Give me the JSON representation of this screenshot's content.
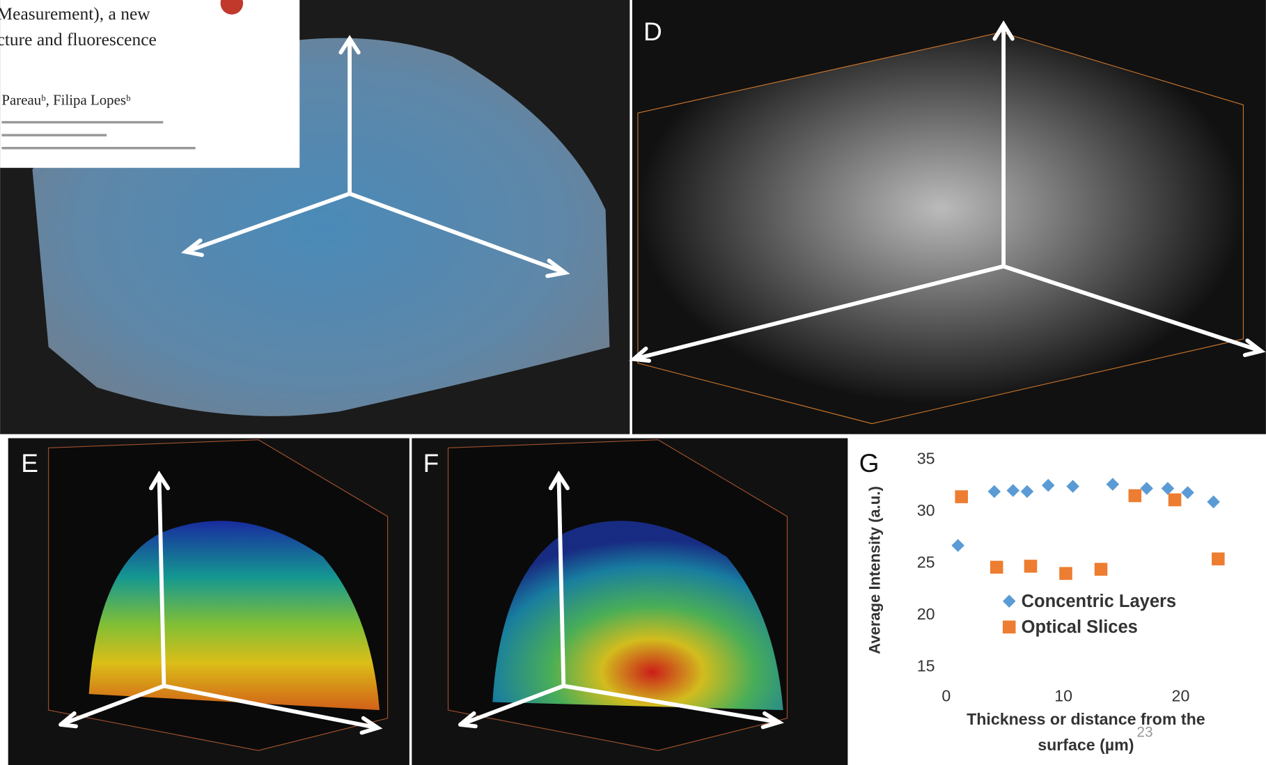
{
  "paper_snippet": {
    "lines": [
      "Measurement), a new",
      "cture and fluorescence"
    ],
    "authors": "Pareauᵇ, Filipa Lopesᵇ"
  },
  "panel_labels": [
    "D",
    "E",
    "F",
    "G"
  ],
  "page_number": "23",
  "chart_data": {
    "type": "scatter",
    "ylabel": "Average Intensity (a.u.)",
    "xlabel": [
      "Thickness or distance from the",
      "surface (µm)"
    ],
    "xlim": [
      0,
      25
    ],
    "xticks": [
      0,
      10,
      20
    ],
    "ylim": [
      15,
      35
    ],
    "yticks": [
      15,
      20,
      25,
      30,
      35
    ],
    "legend": "lower-center",
    "series": [
      {
        "name": "Concentric Layers",
        "color": "#5b9bd5",
        "marker": "diamond",
        "x": [
          1.0,
          4.1,
          5.7,
          6.9,
          8.7,
          10.8,
          14.2,
          17.1,
          18.9,
          20.6,
          22.8
        ],
        "values": [
          26.6,
          31.8,
          31.9,
          31.8,
          32.4,
          32.3,
          32.5,
          32.1,
          32.1,
          31.7,
          30.8
        ]
      },
      {
        "name": "Optical Slices",
        "color": "#ed7d31",
        "marker": "square",
        "x": [
          1.3,
          4.3,
          7.2,
          10.2,
          13.2,
          16.1,
          19.5,
          23.2
        ],
        "values": [
          31.3,
          24.5,
          24.6,
          23.9,
          24.3,
          31.4,
          31.0,
          25.3
        ]
      }
    ]
  }
}
